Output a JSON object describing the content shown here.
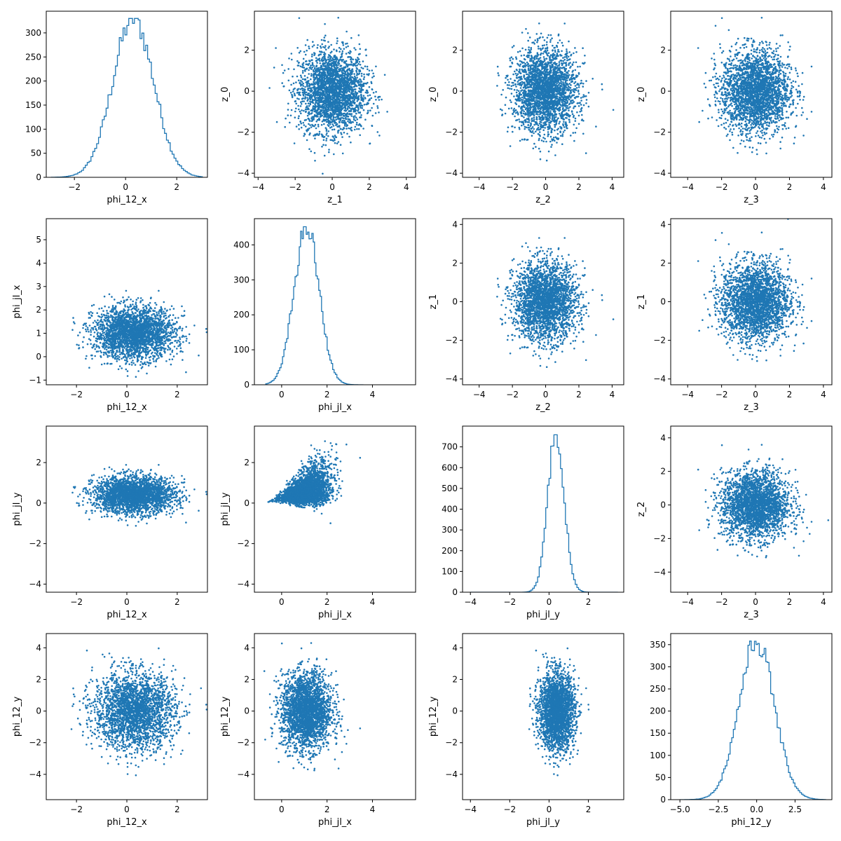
{
  "figure": {
    "series_color": "#1f77b4"
  },
  "chart_data": [
    {
      "type": "histogram",
      "row": 0,
      "col": 0,
      "xlabel": "phi_12_x",
      "ylabel": "",
      "xlim": [
        -3.1,
        3.2
      ],
      "ylim": [
        0,
        345
      ],
      "xticks": [
        -2,
        0,
        2
      ],
      "yticks": [
        0,
        50,
        100,
        150,
        200,
        250,
        300
      ],
      "center": 0.3,
      "spread": 0.8,
      "peak": 330,
      "range": [
        -2.9,
        3.0
      ],
      "bins": 80,
      "color": "#1f77b4"
    },
    {
      "type": "scatter",
      "row": 0,
      "col": 1,
      "xlabel": "z_1",
      "ylabel": "z_0",
      "xlim": [
        -4.2,
        4.5
      ],
      "ylim": [
        -4.2,
        3.9
      ],
      "xticks": [
        -4,
        -2,
        0,
        2,
        4
      ],
      "yticks": [
        -4,
        -2,
        0,
        2
      ],
      "center": [
        0,
        0
      ],
      "spread": [
        0.9,
        1.0
      ],
      "color": "#1f77b4"
    },
    {
      "type": "scatter",
      "row": 0,
      "col": 2,
      "xlabel": "z_2",
      "ylabel": "z_0",
      "xlim": [
        -5.0,
        4.7
      ],
      "ylim": [
        -4.2,
        3.9
      ],
      "xticks": [
        -4,
        -2,
        0,
        2,
        4
      ],
      "yticks": [
        -4,
        -2,
        0,
        2
      ],
      "center": [
        0,
        0
      ],
      "spread": [
        0.95,
        1.0
      ],
      "color": "#1f77b4"
    },
    {
      "type": "scatter",
      "row": 0,
      "col": 3,
      "xlabel": "z_3",
      "ylabel": "z_0",
      "xlim": [
        -5.0,
        4.5
      ],
      "ylim": [
        -4.2,
        3.9
      ],
      "xticks": [
        -4,
        -2,
        0,
        2,
        4
      ],
      "yticks": [
        -4,
        -2,
        0,
        2
      ],
      "center": [
        0,
        0
      ],
      "spread": [
        1.0,
        1.0
      ],
      "color": "#1f77b4"
    },
    {
      "type": "scatter",
      "row": 1,
      "col": 0,
      "xlabel": "phi_12_x",
      "ylabel": "phi_jl_x",
      "xlim": [
        -3.2,
        3.2
      ],
      "ylim": [
        -1.2,
        5.9
      ],
      "xticks": [
        -2,
        0,
        2
      ],
      "yticks": [
        -1,
        0,
        1,
        2,
        3,
        4,
        5
      ],
      "center": [
        0.3,
        1.0
      ],
      "spread": [
        0.8,
        0.55
      ],
      "color": "#1f77b4"
    },
    {
      "type": "histogram",
      "row": 1,
      "col": 1,
      "xlabel": "phi_jl_x",
      "ylabel": "",
      "xlim": [
        -1.2,
        5.9
      ],
      "ylim": [
        0,
        475
      ],
      "xticks": [
        0,
        2,
        4
      ],
      "yticks": [
        0,
        100,
        200,
        300,
        400
      ],
      "center": 1.1,
      "spread": 0.55,
      "peak": 452,
      "range": [
        -0.7,
        3.6
      ],
      "bins": 70,
      "color": "#1f77b4"
    },
    {
      "type": "scatter",
      "row": 1,
      "col": 2,
      "xlabel": "z_2",
      "ylabel": "z_1",
      "xlim": [
        -5.0,
        4.7
      ],
      "ylim": [
        -4.3,
        4.3
      ],
      "xticks": [
        -4,
        -2,
        0,
        2,
        4
      ],
      "yticks": [
        -4,
        -2,
        0,
        2,
        4
      ],
      "center": [
        0,
        0
      ],
      "spread": [
        0.95,
        1.0
      ],
      "color": "#1f77b4"
    },
    {
      "type": "scatter",
      "row": 1,
      "col": 3,
      "xlabel": "z_3",
      "ylabel": "z_1",
      "xlim": [
        -5.0,
        4.5
      ],
      "ylim": [
        -4.3,
        4.3
      ],
      "xticks": [
        -4,
        -2,
        0,
        2,
        4
      ],
      "yticks": [
        -4,
        -2,
        0,
        2,
        4
      ],
      "center": [
        0,
        0
      ],
      "spread": [
        1.0,
        1.0
      ],
      "color": "#1f77b4"
    },
    {
      "type": "scatter",
      "row": 2,
      "col": 0,
      "xlabel": "phi_12_x",
      "ylabel": "phi_jl_y",
      "xlim": [
        -3.2,
        3.2
      ],
      "ylim": [
        -4.4,
        3.8
      ],
      "xticks": [
        -2,
        0,
        2
      ],
      "yticks": [
        -4,
        -2,
        0,
        2
      ],
      "center": [
        0.3,
        0.4
      ],
      "spread": [
        0.8,
        0.45
      ],
      "color": "#1f77b4"
    },
    {
      "type": "scatter",
      "row": 2,
      "col": 1,
      "xlabel": "phi_jl_x",
      "ylabel": "phi_jl_y",
      "xlim": [
        -1.2,
        5.9
      ],
      "ylim": [
        -4.4,
        3.8
      ],
      "xticks": [
        0,
        2,
        4
      ],
      "yticks": [
        -4,
        -2,
        0,
        2
      ],
      "shape": "wedge",
      "center": [
        1.1,
        0.4
      ],
      "spread": [
        0.55,
        0.45
      ],
      "color": "#1f77b4"
    },
    {
      "type": "histogram",
      "row": 2,
      "col": 2,
      "xlabel": "phi_jl_y",
      "ylabel": "",
      "xlim": [
        -4.4,
        3.8
      ],
      "ylim": [
        0,
        800
      ],
      "xticks": [
        -4,
        -2,
        0,
        2
      ],
      "yticks": [
        0,
        100,
        200,
        300,
        400,
        500,
        600,
        700
      ],
      "center": 0.35,
      "spread": 0.42,
      "peak": 758,
      "range": [
        -4.0,
        3.5
      ],
      "bins": 90,
      "color": "#1f77b4"
    },
    {
      "type": "scatter",
      "row": 2,
      "col": 3,
      "xlabel": "z_3",
      "ylabel": "z_2",
      "xlim": [
        -5.0,
        4.5
      ],
      "ylim": [
        -5.2,
        4.7
      ],
      "xticks": [
        -4,
        -2,
        0,
        2,
        4
      ],
      "yticks": [
        -4,
        -2,
        0,
        2,
        4
      ],
      "center": [
        0,
        0
      ],
      "spread": [
        1.0,
        1.0
      ],
      "color": "#1f77b4"
    },
    {
      "type": "scatter",
      "row": 3,
      "col": 0,
      "xlabel": "phi_12_x",
      "ylabel": "phi_12_y",
      "xlim": [
        -3.2,
        3.2
      ],
      "ylim": [
        -5.6,
        4.9
      ],
      "xticks": [
        -2,
        0,
        2
      ],
      "yticks": [
        -4,
        -2,
        0,
        2,
        4
      ],
      "center": [
        0.3,
        0
      ],
      "spread": [
        0.8,
        1.2
      ],
      "color": "#1f77b4"
    },
    {
      "type": "scatter",
      "row": 3,
      "col": 1,
      "xlabel": "phi_jl_x",
      "ylabel": "phi_12_y",
      "xlim": [
        -1.2,
        5.9
      ],
      "ylim": [
        -5.6,
        4.9
      ],
      "xticks": [
        0,
        2,
        4
      ],
      "yticks": [
        -4,
        -2,
        0,
        2,
        4
      ],
      "center": [
        1.1,
        0
      ],
      "spread": [
        0.55,
        1.2
      ],
      "color": "#1f77b4"
    },
    {
      "type": "scatter",
      "row": 3,
      "col": 2,
      "xlabel": "phi_jl_y",
      "ylabel": "phi_12_y",
      "xlim": [
        -4.4,
        3.8
      ],
      "ylim": [
        -5.6,
        4.9
      ],
      "xticks": [
        -4,
        -2,
        0,
        2
      ],
      "yticks": [
        -4,
        -2,
        0,
        2,
        4
      ],
      "center": [
        0.4,
        0
      ],
      "spread": [
        0.45,
        1.2
      ],
      "color": "#1f77b4"
    },
    {
      "type": "histogram",
      "row": 3,
      "col": 3,
      "xlabel": "phi_12_y",
      "ylabel": "",
      "xlim": [
        -5.6,
        4.9
      ],
      "ylim": [
        0,
        375
      ],
      "xticks": [
        -5.0,
        -2.5,
        0.0,
        2.5
      ],
      "xtick_labels": [
        "−5.0",
        "−2.5",
        "0.0",
        "2.5"
      ],
      "yticks": [
        0,
        50,
        100,
        150,
        200,
        250,
        300,
        350
      ],
      "center": 0.0,
      "spread": 1.15,
      "peak": 358,
      "range": [
        -5.0,
        4.5
      ],
      "bins": 90,
      "color": "#1f77b4"
    }
  ]
}
